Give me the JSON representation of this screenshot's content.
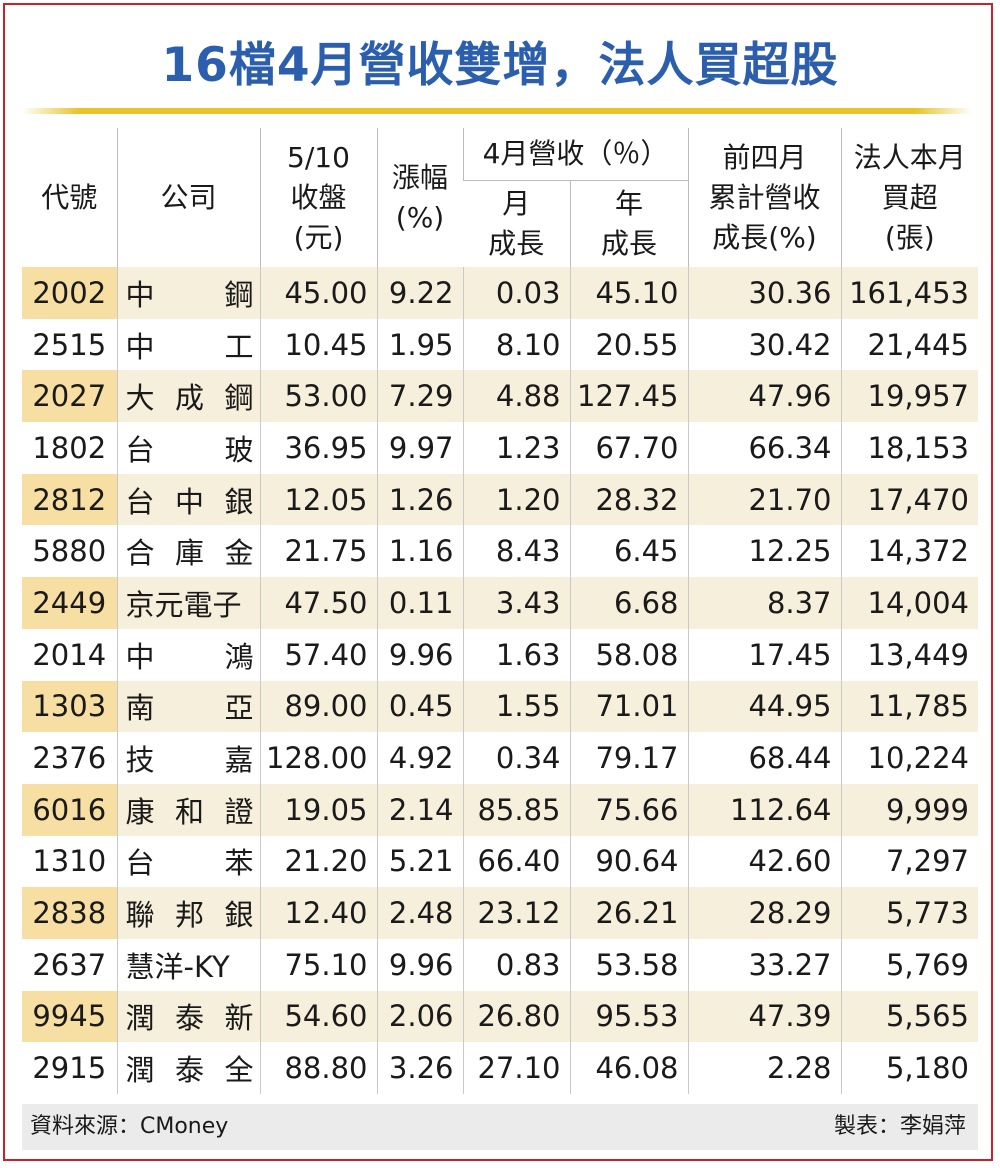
{
  "title": "16檔4月營收雙增，法人買超股",
  "headers": {
    "code": "代號",
    "company": "公司",
    "close_line1": "5/10",
    "close_line2": "收盤",
    "close_line3": "(元)",
    "change_line1": "漲幅",
    "change_line2": "(%)",
    "revenue_group": "4月營收（％）",
    "mom_line1": "月",
    "mom_line2": "成長",
    "yoy_line1": "年",
    "yoy_line2": "成長",
    "cum_line1": "前四月",
    "cum_line2": "累計營收",
    "cum_line3": "成長(%)",
    "inst_line1": "法人本月",
    "inst_line2": "買超",
    "inst_line3": "(張)"
  },
  "rows": [
    {
      "code": "2002",
      "company": [
        "中",
        "鋼"
      ],
      "close": "45.00",
      "change": "9.22",
      "mom": "0.03",
      "yoy": "45.10",
      "cum": "30.36",
      "inst": "161,453"
    },
    {
      "code": "2515",
      "company": [
        "中",
        "工"
      ],
      "close": "10.45",
      "change": "1.95",
      "mom": "8.10",
      "yoy": "20.55",
      "cum": "30.42",
      "inst": "21,445"
    },
    {
      "code": "2027",
      "company": [
        "大",
        "成",
        "鋼"
      ],
      "close": "53.00",
      "change": "7.29",
      "mom": "4.88",
      "yoy": "127.45",
      "cum": "47.96",
      "inst": "19,957"
    },
    {
      "code": "1802",
      "company": [
        "台",
        "玻"
      ],
      "close": "36.95",
      "change": "9.97",
      "mom": "1.23",
      "yoy": "67.70",
      "cum": "66.34",
      "inst": "18,153"
    },
    {
      "code": "2812",
      "company": [
        "台",
        "中",
        "銀"
      ],
      "close": "12.05",
      "change": "1.26",
      "mom": "1.20",
      "yoy": "28.32",
      "cum": "21.70",
      "inst": "17,470"
    },
    {
      "code": "5880",
      "company": [
        "合",
        "庫",
        "金"
      ],
      "close": "21.75",
      "change": "1.16",
      "mom": "8.43",
      "yoy": "6.45",
      "cum": "12.25",
      "inst": "14,372"
    },
    {
      "code": "2449",
      "company": [
        "京元電子"
      ],
      "close": "47.50",
      "change": "0.11",
      "mom": "3.43",
      "yoy": "6.68",
      "cum": "8.37",
      "inst": "14,004"
    },
    {
      "code": "2014",
      "company": [
        "中",
        "鴻"
      ],
      "close": "57.40",
      "change": "9.96",
      "mom": "1.63",
      "yoy": "58.08",
      "cum": "17.45",
      "inst": "13,449"
    },
    {
      "code": "1303",
      "company": [
        "南",
        "亞"
      ],
      "close": "89.00",
      "change": "0.45",
      "mom": "1.55",
      "yoy": "71.01",
      "cum": "44.95",
      "inst": "11,785"
    },
    {
      "code": "2376",
      "company": [
        "技",
        "嘉"
      ],
      "close": "128.00",
      "change": "4.92",
      "mom": "0.34",
      "yoy": "79.17",
      "cum": "68.44",
      "inst": "10,224"
    },
    {
      "code": "6016",
      "company": [
        "康",
        "和",
        "證"
      ],
      "close": "19.05",
      "change": "2.14",
      "mom": "85.85",
      "yoy": "75.66",
      "cum": "112.64",
      "inst": "9,999"
    },
    {
      "code": "1310",
      "company": [
        "台",
        "苯"
      ],
      "close": "21.20",
      "change": "5.21",
      "mom": "66.40",
      "yoy": "90.64",
      "cum": "42.60",
      "inst": "7,297"
    },
    {
      "code": "2838",
      "company": [
        "聯",
        "邦",
        "銀"
      ],
      "close": "12.40",
      "change": "2.48",
      "mom": "23.12",
      "yoy": "26.21",
      "cum": "28.29",
      "inst": "5,773"
    },
    {
      "code": "2637",
      "company": [
        "慧洋-KY"
      ],
      "close": "75.10",
      "change": "9.96",
      "mom": "0.83",
      "yoy": "53.58",
      "cum": "33.27",
      "inst": "5,769"
    },
    {
      "code": "9945",
      "company": [
        "潤",
        "泰",
        "新"
      ],
      "close": "54.60",
      "change": "2.06",
      "mom": "26.80",
      "yoy": "95.53",
      "cum": "47.39",
      "inst": "5,565"
    },
    {
      "code": "2915",
      "company": [
        "潤",
        "泰",
        "全"
      ],
      "close": "88.80",
      "change": "3.26",
      "mom": "27.10",
      "yoy": "46.08",
      "cum": "2.28",
      "inst": "5,180"
    }
  ],
  "footer": {
    "source": "資料來源：CMoney",
    "maker": "製表：李娟萍"
  },
  "colors": {
    "title": "#2b5fae",
    "border": "#c8232c",
    "rule": "#e8c428",
    "band": "#f5efdc",
    "band_code": "#f7dfa3",
    "footer_bg": "#ebebeb"
  }
}
